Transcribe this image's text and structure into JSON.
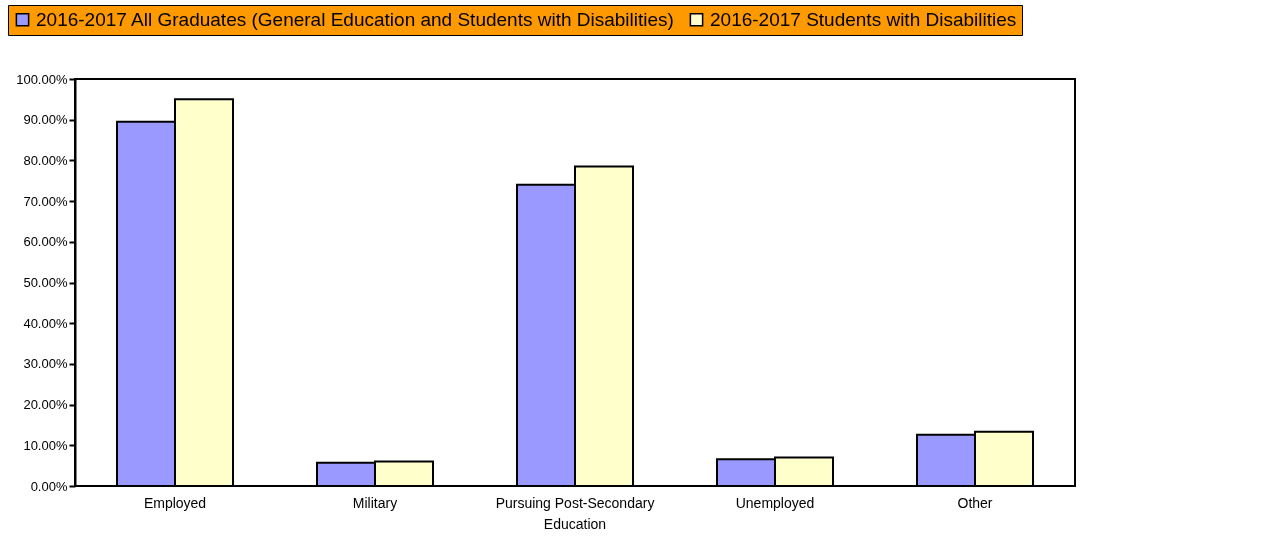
{
  "chart_data": {
    "type": "bar",
    "categories": [
      "Employed",
      "Military",
      "Pursuing Post-Secondary\nEducation",
      "Unemployed",
      "Other"
    ],
    "series": [
      {
        "name": "2016-2017 All Graduates (General Education and Students with Disabilities)",
        "color": "#9999ff",
        "values": [
          89.5,
          5.7,
          74.0,
          6.6,
          12.6
        ]
      },
      {
        "name": "2016-2017 Students with Disabilities",
        "color": "#ffffcc",
        "values": [
          95.0,
          6.0,
          78.5,
          7.0,
          13.3
        ]
      }
    ],
    "ylim": [
      0,
      100
    ],
    "yticks": [
      {
        "value": 0,
        "label": "0.00%"
      },
      {
        "value": 10,
        "label": "10.00%"
      },
      {
        "value": 20,
        "label": "20.00%"
      },
      {
        "value": 30,
        "label": "30.00%"
      },
      {
        "value": 40,
        "label": "40.00%"
      },
      {
        "value": 50,
        "label": "50.00%"
      },
      {
        "value": 60,
        "label": "60.00%"
      },
      {
        "value": 70,
        "label": "70.00%"
      },
      {
        "value": 80,
        "label": "80.00%"
      },
      {
        "value": 90,
        "label": "90.00%"
      },
      {
        "value": 100,
        "label": "100.00%"
      }
    ],
    "grid": false,
    "legend": "top"
  }
}
